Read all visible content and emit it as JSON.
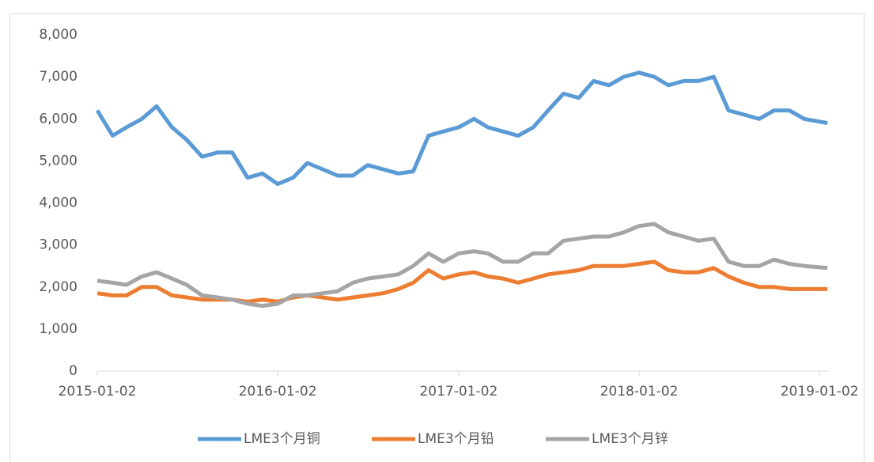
{
  "chart_data": {
    "type": "line",
    "x": [
      "2015-01-02",
      "2015-02-02",
      "2015-03-02",
      "2015-04-02",
      "2015-05-02",
      "2015-06-02",
      "2015-07-02",
      "2015-08-02",
      "2015-09-02",
      "2015-10-02",
      "2015-11-02",
      "2015-12-02",
      "2016-01-02",
      "2016-02-02",
      "2016-03-02",
      "2016-04-02",
      "2016-05-02",
      "2016-06-02",
      "2016-07-02",
      "2016-08-02",
      "2016-09-02",
      "2016-10-02",
      "2016-11-02",
      "2016-12-02",
      "2017-01-02",
      "2017-02-02",
      "2017-03-02",
      "2017-04-02",
      "2017-05-02",
      "2017-06-02",
      "2017-07-02",
      "2017-08-02",
      "2017-09-02",
      "2017-10-02",
      "2017-11-02",
      "2017-12-02",
      "2018-01-02",
      "2018-02-02",
      "2018-03-02",
      "2018-04-02",
      "2018-05-02",
      "2018-06-02",
      "2018-07-02",
      "2018-08-02",
      "2018-09-02",
      "2018-10-02",
      "2018-11-02",
      "2018-12-02",
      "2019-01-18"
    ],
    "series": [
      {
        "name": "LME3个月铜",
        "color": "#5b9bd5",
        "values": [
          6200,
          5600,
          5800,
          6000,
          6300,
          5800,
          5500,
          5100,
          5200,
          5200,
          4600,
          4700,
          4450,
          4600,
          4950,
          4800,
          4650,
          4650,
          4900,
          4800,
          4700,
          4750,
          5600,
          5700,
          5800,
          6000,
          5800,
          5700,
          5600,
          5800,
          6200,
          6600,
          6500,
          6900,
          6800,
          7000,
          7100,
          7000,
          6800,
          6900,
          6900,
          7000,
          6200,
          6100,
          6000,
          6200,
          6200,
          6000,
          5900
        ]
      },
      {
        "name": "LME3个月铅",
        "color": "#ed7d31",
        "values": [
          1850,
          1800,
          1800,
          2000,
          2000,
          1800,
          1750,
          1700,
          1700,
          1700,
          1650,
          1700,
          1650,
          1750,
          1800,
          1750,
          1700,
          1750,
          1800,
          1850,
          1950,
          2100,
          2400,
          2200,
          2300,
          2350,
          2250,
          2200,
          2100,
          2200,
          2300,
          2350,
          2400,
          2500,
          2500,
          2500,
          2550,
          2600,
          2400,
          2350,
          2350,
          2450,
          2250,
          2100,
          2000,
          2000,
          1950,
          1950,
          1950
        ]
      },
      {
        "name": "LME3个月锌",
        "color": "#a5a5a5",
        "values": [
          2150,
          2100,
          2050,
          2250,
          2350,
          2200,
          2050,
          1800,
          1750,
          1700,
          1600,
          1550,
          1600,
          1800,
          1800,
          1850,
          1900,
          2100,
          2200,
          2250,
          2300,
          2500,
          2800,
          2600,
          2800,
          2850,
          2800,
          2600,
          2600,
          2800,
          2800,
          3100,
          3150,
          3200,
          3200,
          3300,
          3450,
          3500,
          3300,
          3200,
          3100,
          3150,
          2600,
          2500,
          2500,
          2650,
          2550,
          2500,
          2450
        ]
      }
    ],
    "xlim": [
      "2015-01-02",
      "2019-01-21"
    ],
    "xticks": [
      "2015-01-02",
      "2016-01-02",
      "2017-01-02",
      "2018-01-02",
      "2019-01-02"
    ],
    "ylim": [
      0,
      8000
    ],
    "yticks": [
      0,
      {
        "value": 1000,
        "label": "1,000"
      },
      {
        "value": 2000,
        "label": "2,000"
      },
      {
        "value": 3000,
        "label": "3,000"
      },
      {
        "value": 4000,
        "label": "4,000"
      },
      {
        "value": 5000,
        "label": "5,000"
      },
      {
        "value": 6000,
        "label": "6,000"
      },
      {
        "value": 7000,
        "label": "7,000"
      },
      {
        "value": 8000,
        "label": "8,000"
      }
    ],
    "legend": "bottom"
  }
}
